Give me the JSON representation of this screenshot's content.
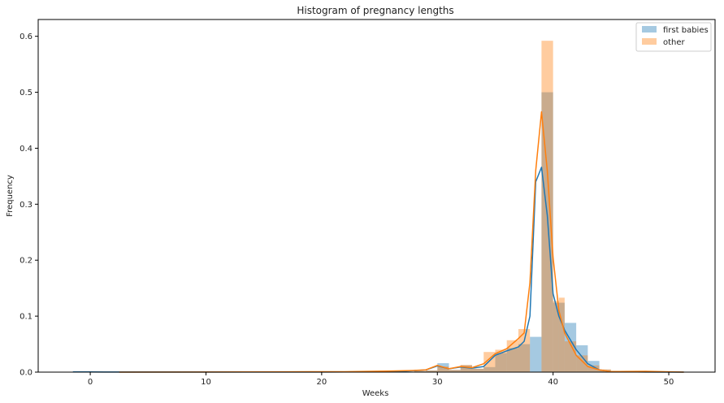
{
  "chart_data": {
    "type": "histogram",
    "title": "Histogram of pregnancy lengths",
    "xlabel": "Weeks",
    "ylabel": "Frequency",
    "xlim": [
      -4.5,
      54
    ],
    "ylim": [
      0,
      0.63
    ],
    "xticks": [
      0,
      10,
      20,
      30,
      40,
      50
    ],
    "yticks": [
      0.0,
      0.1,
      0.2,
      0.3,
      0.4,
      0.5,
      0.6
    ],
    "ytick_labels": [
      "0.0",
      "0.1",
      "0.2",
      "0.3",
      "0.4",
      "0.5",
      "0.6"
    ],
    "grid": false,
    "legend_position": "top-right",
    "series": [
      {
        "name": "first babies",
        "color": "#1f77b4",
        "bins": [
          {
            "x0": 28.0,
            "x1": 29.0,
            "h": 0.002
          },
          {
            "x0": 29.0,
            "x1": 30.0,
            "h": 0.003
          },
          {
            "x0": 30.0,
            "x1": 31.0,
            "h": 0.016
          },
          {
            "x0": 31.0,
            "x1": 32.0,
            "h": 0.004
          },
          {
            "x0": 32.0,
            "x1": 33.0,
            "h": 0.012
          },
          {
            "x0": 33.0,
            "x1": 34.0,
            "h": 0.006
          },
          {
            "x0": 34.0,
            "x1": 35.0,
            "h": 0.009
          },
          {
            "x0": 35.0,
            "x1": 36.0,
            "h": 0.034
          },
          {
            "x0": 36.0,
            "x1": 37.0,
            "h": 0.043
          },
          {
            "x0": 37.0,
            "x1": 38.0,
            "h": 0.05
          },
          {
            "x0": 38.0,
            "x1": 39.0,
            "h": 0.063
          },
          {
            "x0": 39.0,
            "x1": 40.0,
            "h": 0.5
          },
          {
            "x0": 40.0,
            "x1": 41.0,
            "h": 0.124
          },
          {
            "x0": 41.0,
            "x1": 42.0,
            "h": 0.088
          },
          {
            "x0": 42.0,
            "x1": 43.0,
            "h": 0.048
          },
          {
            "x0": 43.0,
            "x1": 44.0,
            "h": 0.02
          },
          {
            "x0": 44.0,
            "x1": 45.0,
            "h": 0.004
          }
        ],
        "kde": [
          [
            -1.5,
            0.0003
          ],
          [
            0,
            0.0003
          ],
          [
            2,
            0.0001
          ],
          [
            10,
            0.0001
          ],
          [
            20,
            0.0001
          ],
          [
            26,
            0.0008
          ],
          [
            27.5,
            0.002
          ],
          [
            29,
            0.004
          ],
          [
            30,
            0.011
          ],
          [
            31,
            0.006
          ],
          [
            32,
            0.009
          ],
          [
            33,
            0.007
          ],
          [
            34,
            0.01
          ],
          [
            35,
            0.03
          ],
          [
            36,
            0.038
          ],
          [
            37,
            0.045
          ],
          [
            37.5,
            0.055
          ],
          [
            38,
            0.1
          ],
          [
            38.5,
            0.34
          ],
          [
            39,
            0.366
          ],
          [
            39.5,
            0.28
          ],
          [
            40,
            0.14
          ],
          [
            40.5,
            0.1
          ],
          [
            41,
            0.075
          ],
          [
            42,
            0.04
          ],
          [
            43,
            0.015
          ],
          [
            44,
            0.004
          ],
          [
            45,
            0.001
          ],
          [
            48,
            0.0001
          ],
          [
            51.3,
            0.0
          ]
        ]
      },
      {
        "name": "other",
        "color": "#ff7f0e",
        "bins": [
          {
            "x0": 17.0,
            "x1": 18.0,
            "h": 0.0007
          },
          {
            "x0": 22.0,
            "x1": 23.0,
            "h": 0.0007
          },
          {
            "x0": 24.0,
            "x1": 25.0,
            "h": 0.001
          },
          {
            "x0": 26.0,
            "x1": 27.0,
            "h": 0.002
          },
          {
            "x0": 28.0,
            "x1": 29.0,
            "h": 0.002
          },
          {
            "x0": 29.0,
            "x1": 30.0,
            "h": 0.003
          },
          {
            "x0": 30.0,
            "x1": 31.0,
            "h": 0.01
          },
          {
            "x0": 31.0,
            "x1": 32.0,
            "h": 0.004
          },
          {
            "x0": 32.0,
            "x1": 33.0,
            "h": 0.013
          },
          {
            "x0": 33.0,
            "x1": 34.0,
            "h": 0.006
          },
          {
            "x0": 34.0,
            "x1": 35.0,
            "h": 0.036
          },
          {
            "x0": 35.0,
            "x1": 36.0,
            "h": 0.04
          },
          {
            "x0": 36.0,
            "x1": 37.0,
            "h": 0.057
          },
          {
            "x0": 37.0,
            "x1": 38.0,
            "h": 0.077
          },
          {
            "x0": 38.5,
            "x1": 39.0,
            "h": 0.0
          },
          {
            "x0": 39.0,
            "x1": 40.0,
            "h": 0.592
          },
          {
            "x0": 40.0,
            "x1": 40.5,
            "h": 0.127
          },
          {
            "x0": 40.5,
            "x1": 41.0,
            "h": 0.133
          },
          {
            "x0": 41.0,
            "x1": 42.0,
            "h": 0.055
          },
          {
            "x0": 42.0,
            "x1": 43.0,
            "h": 0.03
          },
          {
            "x0": 43.0,
            "x1": 44.0,
            "h": 0.012
          },
          {
            "x0": 44.0,
            "x1": 45.0,
            "h": 0.005
          },
          {
            "x0": 48.0,
            "x1": 49.0,
            "h": 0.001
          }
        ],
        "kde": [
          [
            2.5,
            0.0
          ],
          [
            10,
            0.0002
          ],
          [
            17,
            0.0006
          ],
          [
            22,
            0.0008
          ],
          [
            26,
            0.002
          ],
          [
            28,
            0.003
          ],
          [
            29,
            0.004
          ],
          [
            30,
            0.012
          ],
          [
            31,
            0.006
          ],
          [
            32,
            0.01
          ],
          [
            33,
            0.008
          ],
          [
            34,
            0.015
          ],
          [
            35,
            0.033
          ],
          [
            36,
            0.042
          ],
          [
            37,
            0.06
          ],
          [
            37.5,
            0.07
          ],
          [
            38,
            0.16
          ],
          [
            38.5,
            0.36
          ],
          [
            39,
            0.465
          ],
          [
            39.5,
            0.36
          ],
          [
            40,
            0.205
          ],
          [
            40.5,
            0.11
          ],
          [
            41,
            0.07
          ],
          [
            42,
            0.03
          ],
          [
            43,
            0.01
          ],
          [
            44,
            0.004
          ],
          [
            45,
            0.001
          ],
          [
            48,
            0.0015
          ],
          [
            51.3,
            0.0
          ]
        ]
      }
    ]
  }
}
